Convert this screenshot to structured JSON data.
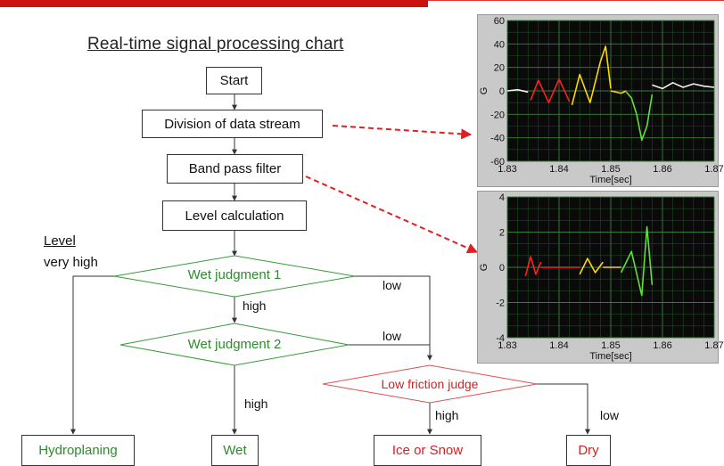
{
  "title": "Real-time signal processing chart",
  "flow": {
    "start": "Start",
    "division": "Division of data stream",
    "bandpass": "Band pass filter",
    "level_calc": "Level calculation",
    "wet1": "Wet judgment 1",
    "wet2": "Wet judgment 2",
    "low_friction": "Low friction judge"
  },
  "labels": {
    "level": "Level",
    "very_high": "very high",
    "low": "low",
    "high": "high"
  },
  "outcomes": {
    "hydroplaning": "Hydroplaning",
    "wet": "Wet",
    "ice_snow": "Ice or Snow",
    "dry": "Dry"
  },
  "colors": {
    "green": "#2e8b2e",
    "red": "#d22222",
    "panel_bg": "#c9c9c9",
    "plot_bg": "#0a0a0a",
    "grid": "#3a7a3a"
  },
  "chart_data": [
    {
      "type": "line",
      "xlabel": "Time[sec]",
      "ylabel": "G",
      "xlim": [
        1.83,
        1.87
      ],
      "ylim": [
        -60,
        60
      ],
      "xticks": [
        "1.83",
        "1.84",
        "1.85",
        "1.86",
        "1.87"
      ],
      "yticks": [
        "60",
        "40",
        "20",
        "0",
        "-20",
        "-40",
        "-60"
      ],
      "series": [
        {
          "color": "white",
          "x": [
            1.83,
            1.832,
            1.834
          ],
          "y": [
            0,
            1,
            -1
          ]
        },
        {
          "color": "red",
          "x": [
            1.8345,
            1.836,
            1.838,
            1.84,
            1.842
          ],
          "y": [
            -8,
            9,
            -10,
            10,
            -9
          ]
        },
        {
          "color": "yellow",
          "x": [
            1.8425,
            1.844,
            1.846,
            1.848,
            1.849,
            1.85
          ],
          "y": [
            -12,
            14,
            -10,
            25,
            38,
            2
          ]
        },
        {
          "color": "yellow",
          "x": [
            1.85,
            1.852,
            1.853
          ],
          "y": [
            0,
            -2,
            0
          ]
        },
        {
          "color": "green",
          "x": [
            1.853,
            1.854,
            1.855,
            1.856,
            1.857,
            1.858
          ],
          "y": [
            -1,
            -6,
            -20,
            -42,
            -30,
            -3
          ]
        },
        {
          "color": "white",
          "x": [
            1.858,
            1.86,
            1.862,
            1.864,
            1.866,
            1.868,
            1.87
          ],
          "y": [
            5,
            2,
            7,
            3,
            6,
            4,
            3
          ]
        }
      ]
    },
    {
      "type": "line",
      "xlabel": "Time[sec]",
      "ylabel": "G",
      "xlim": [
        1.83,
        1.87
      ],
      "ylim": [
        -4,
        4
      ],
      "xticks": [
        "1.83",
        "1.84",
        "1.85",
        "1.86",
        "1.87"
      ],
      "yticks": [
        "4",
        "2",
        "0",
        "-2",
        "-4"
      ],
      "series": [
        {
          "color": "red",
          "x": [
            1.8335,
            1.8345,
            1.8355,
            1.8365
          ],
          "y": [
            -0.5,
            0.6,
            -0.4,
            0.3
          ]
        },
        {
          "color": "red",
          "x": [
            1.8365,
            1.844
          ],
          "y": [
            0,
            0
          ]
        },
        {
          "color": "yellow",
          "x": [
            1.844,
            1.8455,
            1.847,
            1.8485
          ],
          "y": [
            -0.4,
            0.5,
            -0.3,
            0.3
          ]
        },
        {
          "color": "yellow",
          "x": [
            1.8485,
            1.852
          ],
          "y": [
            0,
            0
          ]
        },
        {
          "color": "green",
          "x": [
            1.852,
            1.854,
            1.856,
            1.857,
            1.858
          ],
          "y": [
            -0.3,
            0.9,
            -1.6,
            2.3,
            -1.0
          ]
        }
      ]
    }
  ]
}
